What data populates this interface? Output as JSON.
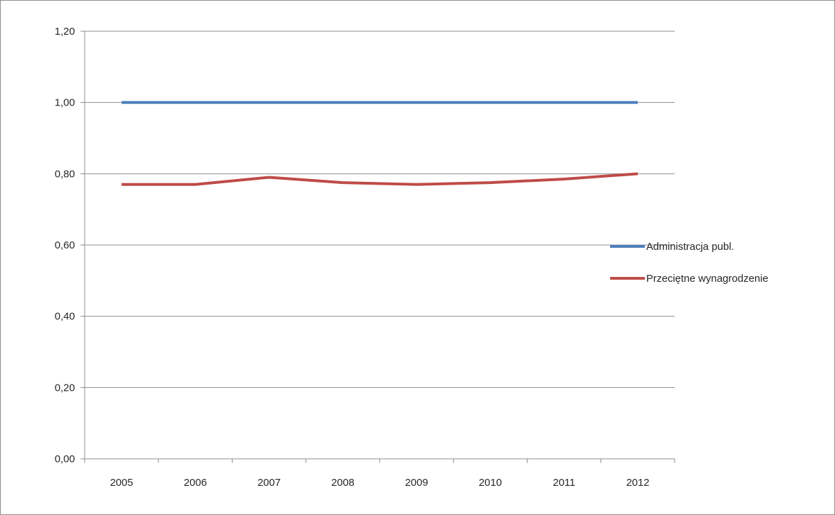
{
  "chart_data": {
    "type": "line",
    "title": "",
    "xlabel": "",
    "ylabel": "",
    "categories": [
      "2005",
      "2006",
      "2007",
      "2008",
      "2009",
      "2010",
      "2011",
      "2012"
    ],
    "ylim": [
      0,
      1.2
    ],
    "yticks": [
      0,
      0.2,
      0.4,
      0.6,
      0.8,
      1.0,
      1.2
    ],
    "ytick_labels": [
      "0,00",
      "0,20",
      "0,40",
      "0,60",
      "0,80",
      "1,00",
      "1,20"
    ],
    "grid": true,
    "legend_position": "right",
    "series": [
      {
        "name": "Administracja publ.",
        "color": "#4a7ebb",
        "values": [
          1.0,
          1.0,
          1.0,
          1.0,
          1.0,
          1.0,
          1.0,
          1.0
        ]
      },
      {
        "name": "Przeciętne wynagrodzenie",
        "color": "#be4b48",
        "values": [
          0.77,
          0.77,
          0.79,
          0.775,
          0.77,
          0.775,
          0.785,
          0.8
        ]
      }
    ]
  }
}
